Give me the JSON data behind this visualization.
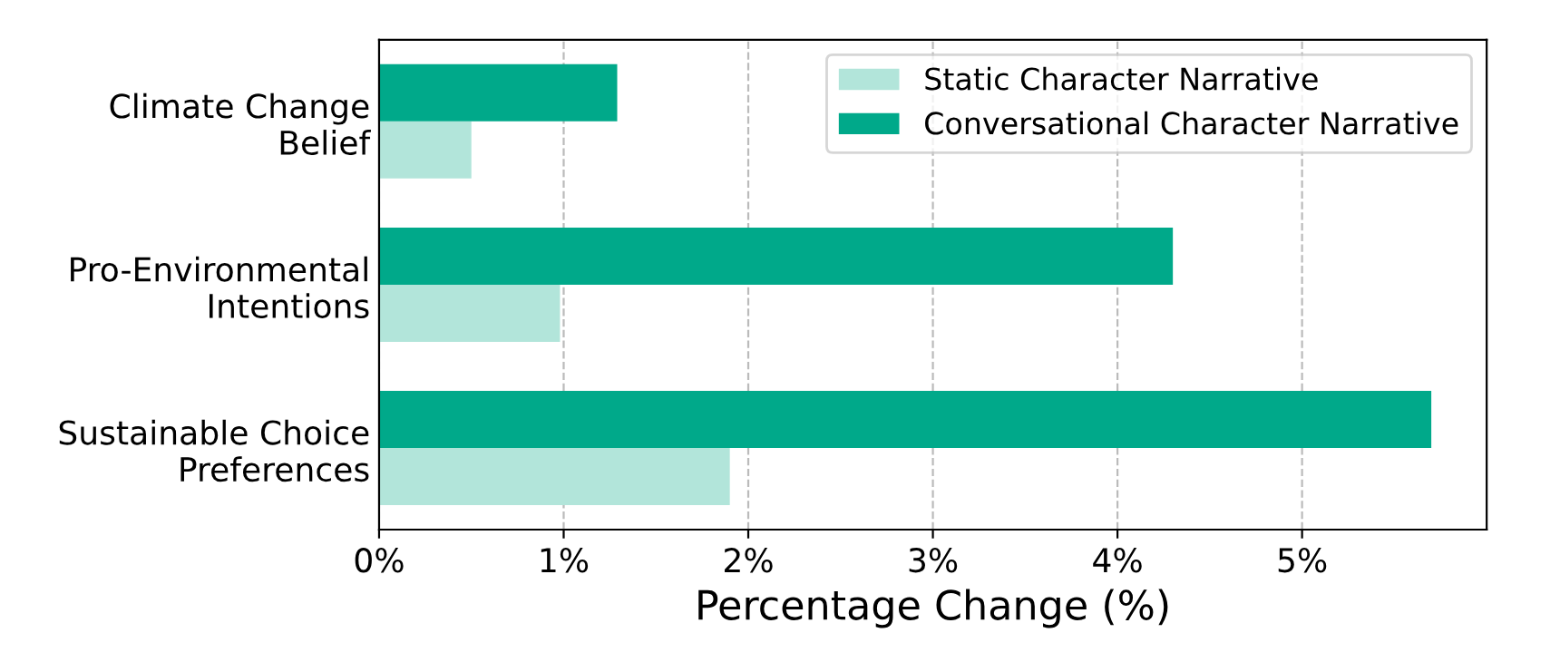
{
  "chart_data": {
    "type": "bar",
    "orientation": "horizontal",
    "xlabel": "Percentage Change (%)",
    "categories": [
      "Climate Change\nBelief",
      "Pro-Environmental\nIntentions",
      "Sustainable Choice\nPreferences"
    ],
    "series": [
      {
        "name": "Static Character Narrative",
        "color": "#b2e5da",
        "values": [
          0.5,
          0.98,
          1.9
        ]
      },
      {
        "name": "Conversational Character Narrative",
        "color": "#00a98a",
        "values": [
          1.29,
          4.3,
          5.7
        ]
      }
    ],
    "xlim": [
      0,
      6
    ],
    "xticks": [
      {
        "value": 0,
        "label": "0%"
      },
      {
        "value": 1,
        "label": "1%"
      },
      {
        "value": 2,
        "label": "2%"
      },
      {
        "value": 3,
        "label": "3%"
      },
      {
        "value": 4,
        "label": "4%"
      },
      {
        "value": 5,
        "label": "5%"
      }
    ],
    "grid": "x",
    "legend": "top right"
  }
}
